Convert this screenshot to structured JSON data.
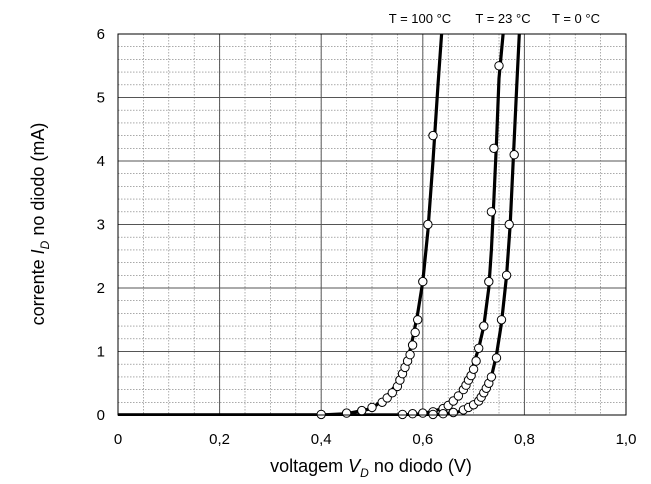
{
  "chart_data": {
    "type": "line",
    "title": "",
    "xlabel": {
      "pre": "voltagem ",
      "sym": "V",
      "sub": "D",
      "post": " no diodo (V)"
    },
    "ylabel": {
      "pre": "corrente ",
      "sym": "I",
      "sub": "D",
      "post": " no diodo (mA)"
    },
    "xlim": [
      0,
      1.0
    ],
    "ylim": [
      0,
      6
    ],
    "x_ticks": [
      {
        "value": 0,
        "label": "0"
      },
      {
        "value": 0.2,
        "label": "0,2"
      },
      {
        "value": 0.4,
        "label": "0,4"
      },
      {
        "value": 0.6,
        "label": "0,6"
      },
      {
        "value": 0.8,
        "label": "0,8"
      },
      {
        "value": 1.0,
        "label": "1,0"
      }
    ],
    "y_ticks": [
      {
        "value": 0,
        "label": "0"
      },
      {
        "value": 1,
        "label": "1"
      },
      {
        "value": 2,
        "label": "2"
      },
      {
        "value": 3,
        "label": "3"
      },
      {
        "value": 4,
        "label": "4"
      },
      {
        "value": 5,
        "label": "5"
      },
      {
        "value": 6,
        "label": "6"
      }
    ],
    "grid": true,
    "grid_minor": {
      "x_step": 0.05,
      "y_step": 0.2
    },
    "series": [
      {
        "name": "T = 100 °C",
        "curve": [
          [
            0,
            0
          ],
          [
            0.4,
            0
          ],
          [
            0.45,
            0.02
          ],
          [
            0.5,
            0.1
          ],
          [
            0.53,
            0.3
          ],
          [
            0.555,
            0.55
          ],
          [
            0.57,
            0.85
          ],
          [
            0.58,
            1.2
          ],
          [
            0.59,
            1.6
          ],
          [
            0.6,
            2.1
          ],
          [
            0.61,
            2.9
          ],
          [
            0.62,
            4.0
          ],
          [
            0.63,
            5.2
          ],
          [
            0.637,
            6.0
          ]
        ],
        "points": [
          [
            0.4,
            0.01
          ],
          [
            0.45,
            0.03
          ],
          [
            0.48,
            0.07
          ],
          [
            0.5,
            0.12
          ],
          [
            0.52,
            0.2
          ],
          [
            0.53,
            0.27
          ],
          [
            0.54,
            0.35
          ],
          [
            0.55,
            0.45
          ],
          [
            0.555,
            0.55
          ],
          [
            0.56,
            0.65
          ],
          [
            0.565,
            0.75
          ],
          [
            0.57,
            0.85
          ],
          [
            0.575,
            0.95
          ],
          [
            0.58,
            1.1
          ],
          [
            0.585,
            1.3
          ],
          [
            0.59,
            1.5
          ],
          [
            0.6,
            2.1
          ],
          [
            0.61,
            3.0
          ],
          [
            0.62,
            4.4
          ]
        ]
      },
      {
        "name": "T = 23 °C",
        "curve": [
          [
            0,
            0
          ],
          [
            0.56,
            0
          ],
          [
            0.6,
            0.02
          ],
          [
            0.64,
            0.1
          ],
          [
            0.67,
            0.3
          ],
          [
            0.69,
            0.55
          ],
          [
            0.7,
            0.8
          ],
          [
            0.71,
            1.05
          ],
          [
            0.72,
            1.4
          ],
          [
            0.73,
            2.0
          ],
          [
            0.735,
            2.6
          ],
          [
            0.74,
            3.4
          ],
          [
            0.745,
            4.3
          ],
          [
            0.75,
            5.3
          ],
          [
            0.758,
            6.0
          ]
        ],
        "points": [
          [
            0.56,
            0.01
          ],
          [
            0.58,
            0.02
          ],
          [
            0.6,
            0.03
          ],
          [
            0.62,
            0.05
          ],
          [
            0.64,
            0.1
          ],
          [
            0.65,
            0.15
          ],
          [
            0.66,
            0.22
          ],
          [
            0.67,
            0.3
          ],
          [
            0.68,
            0.4
          ],
          [
            0.685,
            0.47
          ],
          [
            0.69,
            0.55
          ],
          [
            0.695,
            0.62
          ],
          [
            0.7,
            0.72
          ],
          [
            0.705,
            0.85
          ],
          [
            0.71,
            1.05
          ],
          [
            0.72,
            1.4
          ],
          [
            0.73,
            2.1
          ],
          [
            0.735,
            3.2
          ],
          [
            0.74,
            4.2
          ],
          [
            0.75,
            5.5
          ]
        ]
      },
      {
        "name": "T = 0 °C",
        "curve": [
          [
            0,
            0
          ],
          [
            0.62,
            0
          ],
          [
            0.67,
            0.05
          ],
          [
            0.7,
            0.15
          ],
          [
            0.72,
            0.35
          ],
          [
            0.735,
            0.6
          ],
          [
            0.745,
            0.95
          ],
          [
            0.755,
            1.45
          ],
          [
            0.765,
            2.2
          ],
          [
            0.772,
            3.0
          ],
          [
            0.778,
            4.0
          ],
          [
            0.785,
            5.2
          ],
          [
            0.79,
            6.0
          ]
        ],
        "points": [
          [
            0.62,
            0.01
          ],
          [
            0.64,
            0.02
          ],
          [
            0.66,
            0.04
          ],
          [
            0.68,
            0.08
          ],
          [
            0.69,
            0.12
          ],
          [
            0.7,
            0.16
          ],
          [
            0.71,
            0.22
          ],
          [
            0.715,
            0.28
          ],
          [
            0.72,
            0.35
          ],
          [
            0.725,
            0.42
          ],
          [
            0.73,
            0.5
          ],
          [
            0.735,
            0.6
          ],
          [
            0.745,
            0.9
          ],
          [
            0.755,
            1.5
          ],
          [
            0.765,
            2.2
          ],
          [
            0.77,
            3.0
          ],
          [
            0.78,
            4.1
          ]
        ]
      }
    ]
  }
}
